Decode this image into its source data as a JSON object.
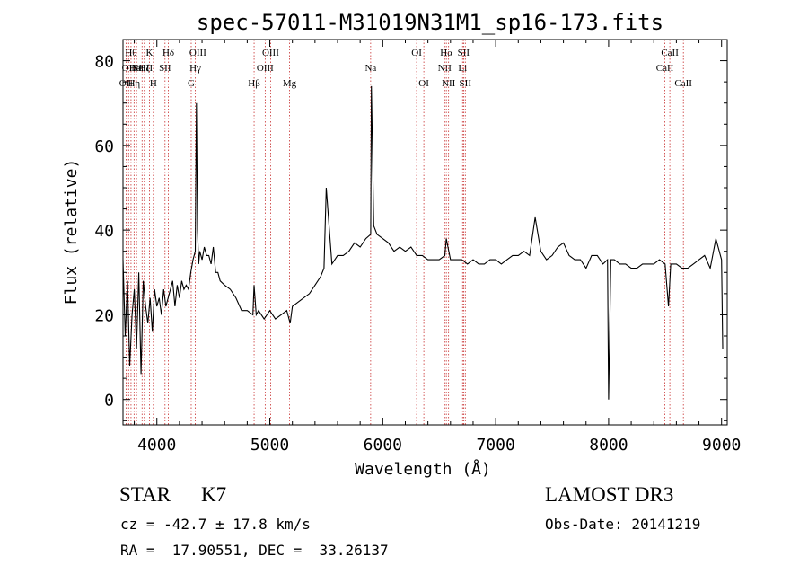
{
  "chart_data": {
    "type": "line",
    "title": "spec-57011-M31019N31M1_sp16-173.fits",
    "xlabel": "Wavelength (Å)",
    "ylabel": "Flux (relative)",
    "xlim": [
      3700,
      9050
    ],
    "ylim": [
      -6,
      85
    ],
    "xticks": [
      4000,
      5000,
      6000,
      7000,
      8000,
      9000
    ],
    "yticks": [
      0,
      20,
      40,
      60,
      80
    ],
    "grid": false,
    "series": [
      {
        "name": "flux",
        "x": [
          3700,
          3720,
          3740,
          3760,
          3780,
          3800,
          3820,
          3840,
          3860,
          3880,
          3900,
          3920,
          3940,
          3960,
          3980,
          4000,
          4020,
          4040,
          4060,
          4080,
          4100,
          4120,
          4140,
          4160,
          4180,
          4200,
          4220,
          4240,
          4260,
          4280,
          4300,
          4320,
          4340,
          4350,
          4360,
          4370,
          4380,
          4400,
          4420,
          4440,
          4460,
          4480,
          4500,
          4520,
          4540,
          4560,
          4600,
          4650,
          4700,
          4750,
          4800,
          4850,
          4861,
          4880,
          4900,
          4950,
          5000,
          5050,
          5100,
          5150,
          5180,
          5200,
          5250,
          5300,
          5350,
          5400,
          5450,
          5480,
          5500,
          5550,
          5600,
          5650,
          5700,
          5750,
          5800,
          5850,
          5893,
          5900,
          5920,
          5950,
          6000,
          6050,
          6100,
          6150,
          6200,
          6250,
          6300,
          6350,
          6400,
          6450,
          6500,
          6550,
          6563,
          6600,
          6650,
          6700,
          6750,
          6800,
          6850,
          6900,
          6950,
          7000,
          7050,
          7100,
          7150,
          7200,
          7250,
          7300,
          7350,
          7400,
          7450,
          7500,
          7550,
          7600,
          7650,
          7700,
          7750,
          7800,
          7850,
          7900,
          7950,
          7990,
          8000,
          8020,
          8050,
          8100,
          8150,
          8200,
          8250,
          8300,
          8350,
          8400,
          8450,
          8500,
          8530,
          8550,
          8600,
          8650,
          8700,
          8750,
          8800,
          8850,
          8900,
          8950,
          9000,
          9010
        ],
        "y": [
          33,
          15,
          28,
          8,
          20,
          26,
          12,
          30,
          6,
          28,
          22,
          18,
          24,
          16,
          26,
          22,
          24,
          20,
          26,
          22,
          24,
          26,
          28,
          22,
          27,
          24,
          28,
          26,
          27,
          26,
          30,
          33,
          35,
          70,
          40,
          32,
          35,
          33,
          36,
          34,
          34,
          32,
          36,
          30,
          30,
          28,
          27,
          26,
          24,
          21,
          21,
          20,
          27,
          20,
          21,
          19,
          21,
          19,
          20,
          21,
          18,
          22,
          23,
          24,
          25,
          27,
          29,
          31,
          50,
          32,
          34,
          34,
          35,
          37,
          36,
          38,
          39,
          74,
          41,
          39,
          38,
          37,
          35,
          36,
          35,
          36,
          34,
          34,
          33,
          33,
          33,
          34,
          38,
          33,
          33,
          33,
          32,
          33,
          32,
          32,
          33,
          33,
          32,
          33,
          34,
          34,
          35,
          34,
          43,
          35,
          33,
          34,
          36,
          37,
          34,
          33,
          33,
          31,
          34,
          34,
          32,
          33,
          0,
          33,
          33,
          32,
          32,
          31,
          31,
          32,
          32,
          32,
          33,
          32,
          22,
          32,
          32,
          31,
          31,
          32,
          33,
          34,
          31,
          38,
          33,
          12
        ]
      }
    ],
    "lines": [
      {
        "w": 3727,
        "label": "OII",
        "row": 2
      },
      {
        "w": 3750,
        "label": "OII",
        "row": 1
      },
      {
        "w": 3771,
        "label": "Hθ",
        "row": 0
      },
      {
        "w": 3798,
        "label": "Hη",
        "row": 2
      },
      {
        "w": 3820,
        "label": "HeI",
        "row": 1
      },
      {
        "w": 3869,
        "label": "NeIII",
        "row": 1
      },
      {
        "w": 3889,
        "label": "Hζ",
        "row": 1
      },
      {
        "w": 3934,
        "label": "K",
        "row": 0
      },
      {
        "w": 3969,
        "label": "H",
        "row": 2
      },
      {
        "w": 4072,
        "label": "SII",
        "row": 1
      },
      {
        "w": 4102,
        "label": "Hδ",
        "row": 0
      },
      {
        "w": 4304,
        "label": "G",
        "row": 2
      },
      {
        "w": 4340,
        "label": "Hγ",
        "row": 1
      },
      {
        "w": 4363,
        "label": "OIII",
        "row": 0
      },
      {
        "w": 4861,
        "label": "Hβ",
        "row": 2
      },
      {
        "w": 4959,
        "label": "OIII",
        "row": 1
      },
      {
        "w": 5007,
        "label": "OIII",
        "row": 0
      },
      {
        "w": 5175,
        "label": "Mg",
        "row": 2
      },
      {
        "w": 5893,
        "label": "Na",
        "row": 1
      },
      {
        "w": 6300,
        "label": "OI",
        "row": 0
      },
      {
        "w": 6364,
        "label": "OI",
        "row": 2
      },
      {
        "w": 6548,
        "label": "NII",
        "row": 1
      },
      {
        "w": 6563,
        "label": "Hα",
        "row": 0
      },
      {
        "w": 6583,
        "label": "NII",
        "row": 2
      },
      {
        "w": 6707,
        "label": "Li",
        "row": 1
      },
      {
        "w": 6716,
        "label": "SII",
        "row": 0
      },
      {
        "w": 6731,
        "label": "SII",
        "row": 2
      },
      {
        "w": 8498,
        "label": "CaII",
        "row": 1
      },
      {
        "w": 8542,
        "label": "CaII",
        "row": 0
      },
      {
        "w": 8662,
        "label": "CaII",
        "row": 2
      }
    ]
  },
  "info": {
    "object_class": "STAR",
    "subclass": "K7",
    "survey": "LAMOST DR3",
    "redshift": "cz = -42.7 ± 17.8 km/s",
    "obs_date": "Obs-Date: 20141219",
    "coords": "RA =  17.90551, DEC =  33.26137"
  }
}
